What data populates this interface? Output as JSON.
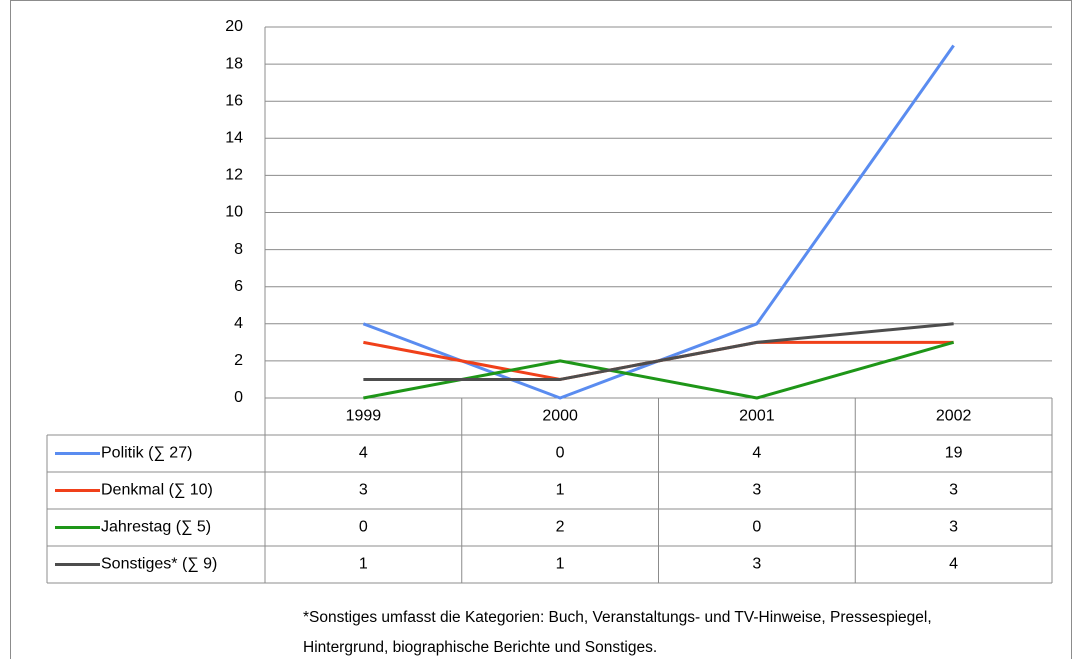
{
  "chart_data": {
    "type": "line",
    "categories": [
      "1999",
      "2000",
      "2001",
      "2002"
    ],
    "series": [
      {
        "name": "Politik (∑ 27)",
        "color": "#5a8cf0",
        "values": [
          4,
          0,
          4,
          19
        ]
      },
      {
        "name": "Denkmal (∑ 10)",
        "color": "#f0401a",
        "values": [
          3,
          1,
          3,
          3
        ]
      },
      {
        "name": "Jahrestag (∑ 5)",
        "color": "#1e9618",
        "values": [
          0,
          2,
          0,
          3
        ]
      },
      {
        "name": "Sonstiges* (∑ 9)",
        "color": "#4d4d4d",
        "values": [
          1,
          1,
          3,
          4
        ]
      }
    ],
    "ylim": [
      0,
      20
    ],
    "yticks": [
      0,
      2,
      4,
      6,
      8,
      10,
      12,
      14,
      16,
      18,
      20
    ],
    "grid": true,
    "data_table": true,
    "footnote": [
      "*Sonstiges umfasst die Kategorien: Buch, Veranstaltungs- und TV-Hinweise, Pressespiegel,",
      "Hintergrund, biographische Berichte und Sonstiges."
    ]
  }
}
